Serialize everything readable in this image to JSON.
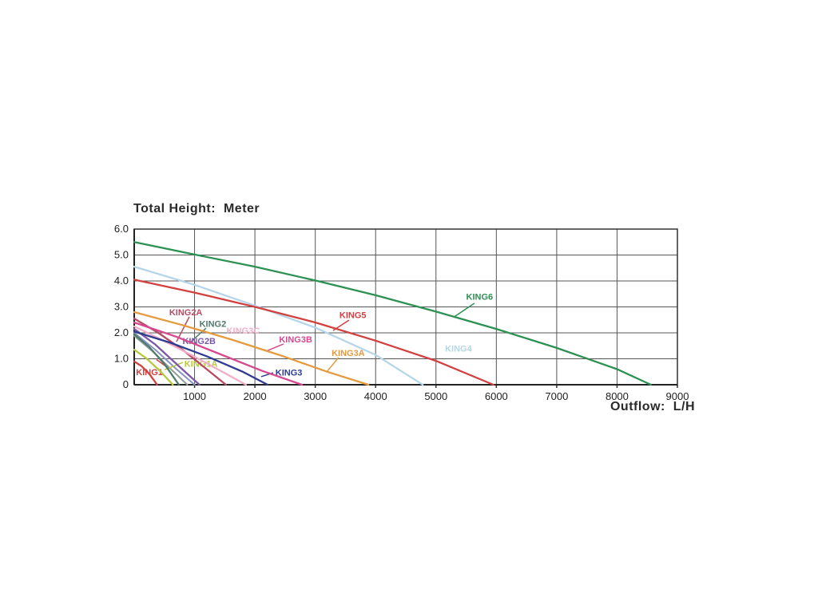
{
  "chart_data": {
    "type": "line",
    "title": "Total Height:  Meter",
    "xlabel": "Outflow:  L/H",
    "ylabel": "Total Height (Meter)",
    "xlim": [
      0,
      9000
    ],
    "ylim": [
      0,
      6
    ],
    "grid": true,
    "legend_position": "labels-on-curves",
    "x_ticks": [
      1000,
      2000,
      3000,
      4000,
      5000,
      6000,
      7000,
      8000,
      9000
    ],
    "y_ticks": [
      {
        "v": 6,
        "label": "6.0"
      },
      {
        "v": 5,
        "label": "5.0"
      },
      {
        "v": 4,
        "label": "4.0"
      },
      {
        "v": 3,
        "label": "3.0"
      },
      {
        "v": 2,
        "label": "2.0"
      },
      {
        "v": 1,
        "label": "1.0"
      },
      {
        "v": 0,
        "label": "0"
      }
    ],
    "series": [
      {
        "name": "KING1",
        "color": "#d34040",
        "label": {
          "x": 30,
          "y": 0.5
        },
        "leader": [
          580,
          0.62,
          370,
          0.97
        ],
        "points": [
          [
            0,
            0.9
          ],
          [
            120,
            0.72
          ],
          [
            250,
            0.42
          ],
          [
            380,
            0
          ]
        ]
      },
      {
        "name": "KING1A",
        "color": "#b6c93f",
        "label": {
          "x": 830,
          "y": 0.82
        },
        "leader": [
          807,
          0.86,
          503,
          0.58
        ],
        "points": [
          [
            0,
            1.35
          ],
          [
            200,
            1.02
          ],
          [
            420,
            0.55
          ],
          [
            640,
            0
          ]
        ]
      },
      {
        "name": "KING2",
        "color": "#4f7a6e",
        "label": {
          "x": 1080,
          "y": 2.35
        },
        "leader": [
          1190,
          2.18,
          913,
          1.6
        ],
        "points": [
          [
            0,
            1.95
          ],
          [
            250,
            1.45
          ],
          [
            500,
            0.8
          ],
          [
            740,
            0
          ]
        ]
      },
      {
        "name": "KING2A",
        "color": "#b84a62",
        "label": {
          "x": 580,
          "y": 2.8
        },
        "leader": [
          913,
          2.62,
          701,
          1.66
        ],
        "points": [
          [
            0,
            2.55
          ],
          [
            400,
            2.0
          ],
          [
            800,
            1.35
          ],
          [
            1200,
            0.6
          ],
          [
            1520,
            0
          ]
        ]
      },
      {
        "name": "KING2B",
        "color": "#7d58a8",
        "label": {
          "x": 800,
          "y": 1.7
        },
        "leader": null,
        "points": [
          [
            0,
            2.15
          ],
          [
            350,
            1.55
          ],
          [
            700,
            0.8
          ],
          [
            1080,
            0
          ]
        ]
      },
      {
        "name": "KING3C",
        "color": "#f0aec8",
        "label": {
          "x": 1530,
          "y": 2.1
        },
        "leader": null,
        "points": [
          [
            0,
            2.25
          ],
          [
            500,
            1.68
          ],
          [
            1000,
            1.08
          ],
          [
            1500,
            0.45
          ],
          [
            1850,
            0
          ]
        ]
      },
      {
        "name": "KING3",
        "color": "#2f3c92",
        "label": {
          "x": 2340,
          "y": 0.48
        },
        "leader": [
          2301,
          0.46,
          2103,
          0.31
        ],
        "points": [
          [
            0,
            2.05
          ],
          [
            600,
            1.62
          ],
          [
            1200,
            1.1
          ],
          [
            1800,
            0.5
          ],
          [
            2210,
            0
          ]
        ]
      },
      {
        "name": "KING3B",
        "color": "#d6498f",
        "label": {
          "x": 2400,
          "y": 1.75
        },
        "leader": [
          2473,
          1.57,
          2183,
          1.29
        ],
        "points": [
          [
            0,
            2.4
          ],
          [
            700,
            1.85
          ],
          [
            1400,
            1.2
          ],
          [
            2100,
            0.55
          ],
          [
            2780,
            0
          ]
        ]
      },
      {
        "name": "KING3A",
        "color": "#e59a3e",
        "label": {
          "x": 3270,
          "y": 1.23
        },
        "leader": [
          3386,
          1.05,
          3188,
          0.49
        ],
        "points": [
          [
            0,
            2.8
          ],
          [
            800,
            2.3
          ],
          [
            1600,
            1.75
          ],
          [
            2400,
            1.15
          ],
          [
            3200,
            0.5
          ],
          [
            3880,
            0
          ]
        ]
      },
      {
        "name": "KING4",
        "color": "#b5d6e8",
        "label": {
          "x": 5150,
          "y": 1.4
        },
        "leader": null,
        "points": [
          [
            0,
            4.55
          ],
          [
            1000,
            3.85
          ],
          [
            2000,
            3.05
          ],
          [
            3000,
            2.2
          ],
          [
            4000,
            1.15
          ],
          [
            4780,
            0
          ]
        ]
      },
      {
        "name": "KING5",
        "color": "#d34040",
        "label": {
          "x": 3400,
          "y": 2.69
        },
        "leader": [
          3558,
          2.49,
          3294,
          2.09
        ],
        "points": [
          [
            0,
            4.05
          ],
          [
            1000,
            3.55
          ],
          [
            2000,
            3.0
          ],
          [
            3000,
            2.4
          ],
          [
            4000,
            1.7
          ],
          [
            5000,
            0.92
          ],
          [
            5950,
            0
          ]
        ]
      },
      {
        "name": "KING6",
        "color": "#2c9152",
        "label": {
          "x": 5500,
          "y": 3.4
        },
        "leader": [
          5635,
          3.14,
          5304,
          2.62
        ],
        "points": [
          [
            0,
            5.5
          ],
          [
            1000,
            5.02
          ],
          [
            2000,
            4.55
          ],
          [
            3000,
            4.02
          ],
          [
            4000,
            3.45
          ],
          [
            5000,
            2.82
          ],
          [
            6000,
            2.15
          ],
          [
            7000,
            1.42
          ],
          [
            8000,
            0.6
          ],
          [
            8560,
            0
          ]
        ]
      }
    ],
    "extra_curves": [
      {
        "color": "#8893c0",
        "points": [
          [
            0,
            2.0
          ],
          [
            350,
            1.35
          ],
          [
            700,
            0.6
          ],
          [
            1000,
            0
          ]
        ]
      },
      {
        "color": "#8f9e97",
        "points": [
          [
            0,
            1.88
          ],
          [
            300,
            1.3
          ],
          [
            600,
            0.62
          ],
          [
            880,
            0
          ]
        ]
      }
    ]
  }
}
